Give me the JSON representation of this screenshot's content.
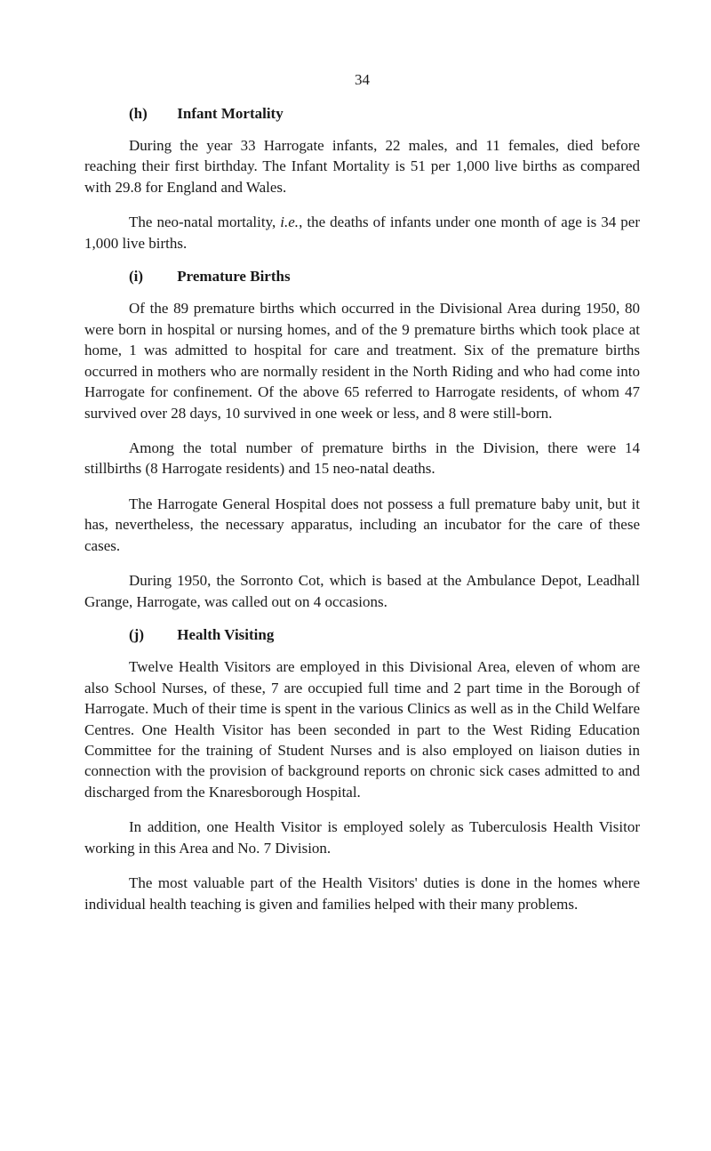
{
  "page_number": "34",
  "sections": [
    {
      "marker": "(h)",
      "title": "Infant Mortality",
      "paragraphs": [
        "During the year 33 Harrogate infants, 22 males, and 11 females, died before reaching their first birthday. The Infant Mortality is 51 per 1,000 live births as compared with 29.8 for England and Wales.",
        "The neo-natal mortality, <i>i.e.</i>, the deaths of infants under one month of age is 34 per 1,000 live births."
      ]
    },
    {
      "marker": "(i)",
      "title": "Premature Births",
      "paragraphs": [
        "Of the 89 premature births which occurred in the Divisional Area during 1950, 80 were born in hospital or nursing homes, and of the 9 premature births which took place at home, 1 was admitted to hospital for care and treatment. Six of the premature births occurred in mothers who are normally resident in the North Riding and who had come into Harrogate for confinement. Of the above 65 referred to Harrogate residents, of whom 47 survived over 28 days, 10 survived in one week or less, and 8 were still-born.",
        "Among the total number of premature births in the Division, there were 14 stillbirths (8 Harrogate residents) and 15 neo-natal deaths.",
        "The Harrogate General Hospital does not possess a full premature baby unit, but it has, nevertheless, the necessary apparatus, including an incubator for the care of these cases.",
        "During 1950, the Sorronto Cot, which is based at the Ambulance Depot, Leadhall Grange, Harrogate, was called out on 4 occasions."
      ]
    },
    {
      "marker": "(j)",
      "title": "Health Visiting",
      "paragraphs": [
        "Twelve Health Visitors are employed in this Divisional Area, eleven of whom are also School Nurses, of these, 7 are occupied full time and 2 part time in the Borough of Harrogate. Much of their time is spent in the various Clinics as well as in the Child Welfare Centres. One Health Visitor has been seconded in part to the West Riding Education Committee for the training of Student Nurses and is also employed on liaison duties in connection with the provision of background reports on chronic sick cases admitted to and discharged from the Knaresborough Hospital.",
        "In addition, one Health Visitor is employed solely as Tuberculosis Health Visitor working in this Area and No. 7 Division.",
        "The most valuable part of the Health Visitors' duties is done in the homes where individual health teaching is given and families helped with their many problems."
      ]
    }
  ]
}
